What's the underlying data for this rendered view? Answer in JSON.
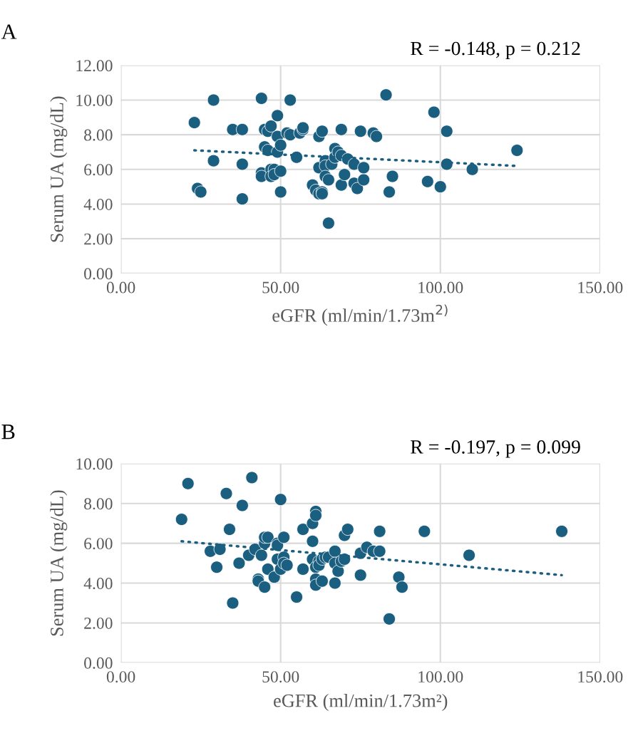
{
  "chart_data": [
    {
      "type": "scatter",
      "title": "A",
      "xlabel": "eGFR (ml/min/1.73m$^{2)}$",
      "ylabel": "Serum UA (mg/dL)",
      "annotations": [
        "R = -0.148, p = 0.212"
      ],
      "xlim": [
        0,
        150
      ],
      "ylim": [
        0,
        12
      ],
      "xticks": [
        {
          "value": 0,
          "label": "0.00"
        },
        {
          "value": 50,
          "label": "50.00"
        },
        {
          "value": 100,
          "label": "100.00"
        },
        {
          "value": 150,
          "label": "150.00"
        }
      ],
      "yticks": [
        {
          "value": 0,
          "label": "0.00"
        },
        {
          "value": 2,
          "label": "2.00"
        },
        {
          "value": 4,
          "label": "4.00"
        },
        {
          "value": 6,
          "label": "6.00"
        },
        {
          "value": 8,
          "label": "8.00"
        },
        {
          "value": 10,
          "label": "10.00"
        },
        {
          "value": 12,
          "label": "12.00"
        }
      ],
      "grid": true,
      "legend": false,
      "series": [
        {
          "color": "#1a5e80",
          "marker": "circle",
          "x": [
            23,
            24,
            25,
            29,
            29,
            35,
            38,
            38,
            38,
            44,
            44,
            44,
            45,
            45,
            46,
            46,
            47,
            47,
            47,
            48,
            48,
            49,
            49,
            49,
            50,
            50,
            50,
            52,
            53,
            53,
            55,
            56,
            57,
            57,
            60,
            61,
            62,
            62,
            62,
            63,
            63,
            63,
            64,
            64,
            64,
            65,
            65,
            66,
            67,
            67,
            68,
            69,
            69,
            69,
            70,
            71,
            73,
            73,
            74,
            75,
            76,
            76,
            79,
            80,
            83,
            84,
            85,
            96,
            98,
            100,
            102,
            102,
            110,
            124
          ],
          "values": [
            8.7,
            4.9,
            4.7,
            10.0,
            6.5,
            8.3,
            8.3,
            6.3,
            4.3,
            10.1,
            5.8,
            5.6,
            8.3,
            7.3,
            7.1,
            8.2,
            8.5,
            6.0,
            5.6,
            6.0,
            5.7,
            7.9,
            7.0,
            9.1,
            7.4,
            5.9,
            4.7,
            8.1,
            8.0,
            10.0,
            6.7,
            8.1,
            8.3,
            8.4,
            5.1,
            4.8,
            7.9,
            6.1,
            4.6,
            8.2,
            4.7,
            4.6,
            6.5,
            6.2,
            5.6,
            5.4,
            2.9,
            6.3,
            7.2,
            6.7,
            7.0,
            8.3,
            5.1,
            6.8,
            5.7,
            6.6,
            6.3,
            5.2,
            4.9,
            8.2,
            5.4,
            6.1,
            8.1,
            7.9,
            10.3,
            4.7,
            5.6,
            5.3,
            9.3,
            5.0,
            8.2,
            6.3,
            6.0,
            7.1
          ]
        },
        {
          "type": "line",
          "color": "#1a5e80",
          "line_style": "dotted",
          "marker": "none",
          "x": [
            23,
            124
          ],
          "values": [
            7.1,
            6.2
          ]
        }
      ]
    },
    {
      "type": "scatter",
      "title": "B",
      "xlabel": "eGFR (ml/min/1.73m²)",
      "ylabel": "Serum UA (mg/dL)",
      "annotations": [
        "R = -0.197, p = 0.099"
      ],
      "xlim": [
        0,
        150
      ],
      "ylim": [
        0,
        10
      ],
      "xticks": [
        {
          "value": 0,
          "label": "0.00"
        },
        {
          "value": 50,
          "label": "50.00"
        },
        {
          "value": 100,
          "label": "100.00"
        },
        {
          "value": 150,
          "label": "150.00"
        }
      ],
      "yticks": [
        {
          "value": 0,
          "label": "0.00"
        },
        {
          "value": 2,
          "label": "2.00"
        },
        {
          "value": 4,
          "label": "4.00"
        },
        {
          "value": 6,
          "label": "6.00"
        },
        {
          "value": 8,
          "label": "8.00"
        },
        {
          "value": 10,
          "label": "10.00"
        }
      ],
      "grid": true,
      "legend": false,
      "series": [
        {
          "color": "#1a5e80",
          "marker": "circle",
          "x": [
            19,
            21,
            28,
            30,
            31,
            33,
            34,
            35,
            37,
            38,
            40,
            41,
            42,
            43,
            43,
            44,
            45,
            45,
            45,
            46,
            46,
            48,
            49,
            49,
            49,
            50,
            50,
            51,
            51,
            51,
            52,
            55,
            57,
            57,
            60,
            60,
            60,
            61,
            61,
            61,
            61,
            61,
            62,
            62,
            63,
            63,
            64,
            65,
            67,
            67,
            67,
            68,
            69,
            70,
            70,
            71,
            75,
            75,
            77,
            79,
            81,
            81,
            84,
            87,
            88,
            95,
            109,
            138
          ],
          "values": [
            7.2,
            9.0,
            5.6,
            4.8,
            5.7,
            8.5,
            6.7,
            3.0,
            5.0,
            7.9,
            5.4,
            9.3,
            5.7,
            4.2,
            4.1,
            5.4,
            3.8,
            6.0,
            6.3,
            6.3,
            4.7,
            4.3,
            5.2,
            6.0,
            5.9,
            8.2,
            4.7,
            5.3,
            6.3,
            5.0,
            4.9,
            3.3,
            6.7,
            4.7,
            7.0,
            6.1,
            5.2,
            7.6,
            7.4,
            4.8,
            4.2,
            3.9,
            5.1,
            4.9,
            5.2,
            4.1,
            5.3,
            5.3,
            5.6,
            5.0,
            4.0,
            4.6,
            5.1,
            6.4,
            5.2,
            6.7,
            5.5,
            4.4,
            5.8,
            5.6,
            6.6,
            5.6,
            2.2,
            4.3,
            3.8,
            6.6,
            5.4,
            6.6
          ]
        },
        {
          "type": "line",
          "color": "#1a5e80",
          "line_style": "dotted",
          "marker": "none",
          "x": [
            19,
            138
          ],
          "values": [
            6.1,
            4.4
          ]
        }
      ]
    }
  ]
}
